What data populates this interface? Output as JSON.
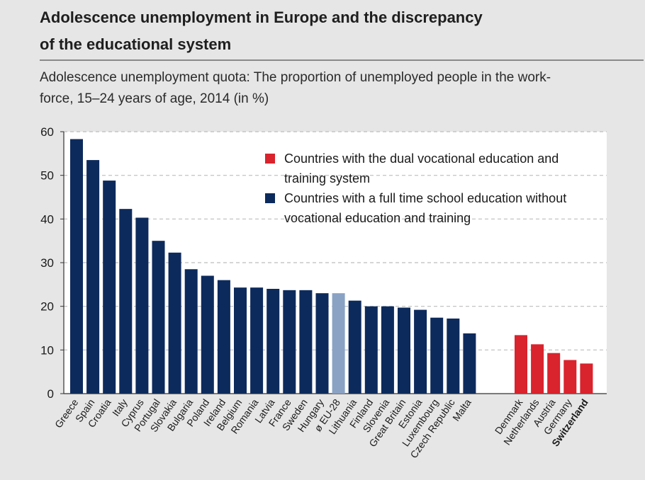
{
  "header": {
    "title_line1": "Adolescence unemployment in Europe and the discrepancy",
    "title_line2": "of the educational system",
    "subtitle_line1": "Adolescence unemployment quota: The proportion of unemployed people in the work-",
    "subtitle_line2": "force, 15–24 years of age, 2014 (in %)"
  },
  "legend": {
    "dual_line1": "Countries with the dual vocational education and",
    "dual_line2": "training system",
    "school_line1": "Countries with a full time school education without",
    "school_line2": "vocational education and training"
  },
  "colors": {
    "school": "#0d2a5c",
    "dual": "#d9232d",
    "eu": "#8aa2c4",
    "grid": "#bdbdbd",
    "plot_bg": "#ffffff"
  },
  "chart_data": {
    "type": "bar",
    "ylim": [
      0,
      60
    ],
    "yticks": [
      0,
      10,
      20,
      30,
      40,
      50,
      60
    ],
    "grid": "dashed horizontal",
    "legend_position": "top-right",
    "series": [
      {
        "name": "Countries with a full time school education without vocational education and training",
        "categories": [
          "Greece",
          "Spain",
          "Croatia",
          "Italy",
          "Cyprus",
          "Portugal",
          "Slovakia",
          "Bulgaria",
          "Poland",
          "Ireland",
          "Belgium",
          "Romania",
          "Latvia",
          "France",
          "Sweden",
          "Hungary",
          "ø EU-28",
          "Lithuania",
          "Finland",
          "Slovenia",
          "Great Britain",
          "Estonia",
          "Luxembourg",
          "Czech Republic",
          "Malta"
        ],
        "values": [
          58.3,
          53.5,
          48.8,
          42.3,
          40.3,
          35.0,
          32.3,
          28.5,
          27.0,
          26.0,
          24.3,
          24.3,
          24.0,
          23.7,
          23.7,
          23.0,
          23.0,
          21.3,
          20.0,
          20.0,
          19.7,
          19.2,
          17.4,
          17.2,
          13.8
        ],
        "highlight": "ø EU-28"
      },
      {
        "name": "Countries with the dual vocational education and training system",
        "categories": [
          "Denmark",
          "Netherlands",
          "Austria",
          "Germany",
          "Switzerland"
        ],
        "values": [
          13.4,
          11.3,
          9.3,
          7.7,
          6.9
        ],
        "bold_label": "Switzerland"
      }
    ]
  }
}
